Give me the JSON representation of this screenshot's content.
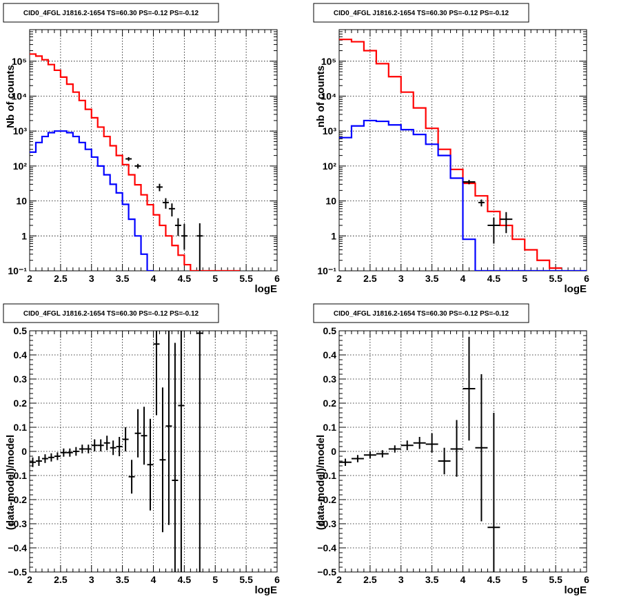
{
  "chart_data": [
    {
      "type": "histogram",
      "title": "CID0_4FGL J1816.2-1654 TS=60.30 PS=-0.12 PS=-0.12",
      "xlabel": "logE",
      "ylabel": "Nb of counts",
      "xlim": [
        2,
        6
      ],
      "ylim": [
        0.1,
        800000
      ],
      "yscale": "log",
      "grid": true,
      "x_ticks": [
        "2",
        "2.5",
        "3",
        "3.5",
        "4",
        "4.5",
        "5",
        "5.5",
        "6"
      ],
      "y_ticks": [
        {
          "v": 0.1,
          "label": "10⁻¹"
        },
        {
          "v": 1,
          "label": "1"
        },
        {
          "v": 10,
          "label": "10"
        },
        {
          "v": 100,
          "label": "10²"
        },
        {
          "v": 1000,
          "label": "10³"
        },
        {
          "v": 10000,
          "label": "10⁴"
        },
        {
          "v": 100000,
          "label": "10⁵"
        }
      ],
      "series": [
        {
          "color": "#ff0000",
          "kind": "step",
          "edges": [
            2.0,
            2.1,
            2.2,
            2.3,
            2.4,
            2.5,
            2.6,
            2.7,
            2.8,
            2.9,
            3.0,
            3.1,
            3.2,
            3.3,
            3.4,
            3.5,
            3.6,
            3.7,
            3.8,
            3.9,
            4.0,
            4.1,
            4.2,
            4.3,
            4.4,
            4.5,
            4.6,
            4.7,
            4.8,
            4.9,
            5.0,
            5.1,
            5.2,
            5.3,
            5.4
          ],
          "values": [
            160000,
            140000,
            110000,
            80000,
            55000,
            35000,
            22000,
            13000,
            7500,
            4200,
            2400,
            1300,
            700,
            380,
            200,
            110,
            56,
            29,
            15,
            7.8,
            4.0,
            2.0,
            1.0,
            0.53,
            0.28,
            0.15,
            0.1,
            0.1,
            0.1,
            0.1,
            0.1,
            0.1,
            0.1,
            0.1
          ]
        },
        {
          "color": "#0000ff",
          "kind": "step",
          "edges": [
            2.0,
            2.1,
            2.2,
            2.3,
            2.4,
            2.5,
            2.6,
            2.7,
            2.8,
            2.9,
            3.0,
            3.1,
            3.2,
            3.3,
            3.4,
            3.5,
            3.6,
            3.7,
            3.8,
            3.9,
            4.0
          ],
          "values": [
            250,
            470,
            700,
            900,
            1000,
            1000,
            900,
            700,
            470,
            300,
            180,
            100,
            56,
            30,
            17,
            8,
            3,
            1,
            0.3,
            0.1
          ]
        },
        {
          "color": "#000000",
          "kind": "points",
          "points": [
            {
              "x": 3.6,
              "y": 160,
              "xerr": 0.05,
              "ylo": 140,
              "yhi": 180
            },
            {
              "x": 3.75,
              "y": 100,
              "xerr": 0.05,
              "ylo": 85,
              "yhi": 115
            },
            {
              "x": 4.1,
              "y": 25,
              "xerr": 0.05,
              "ylo": 19,
              "yhi": 31
            },
            {
              "x": 4.2,
              "y": 9,
              "xerr": 0.05,
              "ylo": 6,
              "yhi": 12
            },
            {
              "x": 4.3,
              "y": 6,
              "xerr": 0.05,
              "ylo": 3.6,
              "yhi": 8.5
            },
            {
              "x": 4.4,
              "y": 2,
              "xerr": 0.05,
              "ylo": 1,
              "yhi": 3.2
            },
            {
              "x": 4.5,
              "y": 1,
              "xerr": 0.05,
              "ylo": 0.4,
              "yhi": 2.2
            },
            {
              "x": 4.75,
              "y": 1,
              "xerr": 0.05,
              "ylo": 0.1,
              "yhi": 2.3
            }
          ]
        }
      ]
    },
    {
      "type": "histogram",
      "title": "CID0_4FGL J1816.2-1654 TS=60.30 PS=-0.12 PS=-0.12",
      "xlabel": "logE",
      "ylabel": "nb of counts",
      "xlim": [
        2,
        6
      ],
      "ylim": [
        0.1,
        800000
      ],
      "yscale": "log",
      "grid": true,
      "x_ticks": [
        "2",
        "2.5",
        "3",
        "3.5",
        "4",
        "4.5",
        "5",
        "5.5",
        "6"
      ],
      "y_ticks": [
        {
          "v": 0.1,
          "label": "10⁻¹"
        },
        {
          "v": 1,
          "label": "1"
        },
        {
          "v": 10,
          "label": "10"
        },
        {
          "v": 100,
          "label": "10²"
        },
        {
          "v": 1000,
          "label": "10³"
        },
        {
          "v": 10000,
          "label": "10⁴"
        },
        {
          "v": 100000,
          "label": "10⁵"
        }
      ],
      "series": [
        {
          "color": "#ff0000",
          "kind": "step",
          "edges": [
            2.0,
            2.2,
            2.4,
            2.6,
            2.8,
            3.0,
            3.2,
            3.4,
            3.6,
            3.8,
            4.0,
            4.2,
            4.4,
            4.6,
            4.8,
            5.0,
            5.2,
            5.4,
            5.6
          ],
          "values": [
            420000,
            360000,
            200000,
            85000,
            36000,
            13000,
            4600,
            1200,
            300,
            80,
            32,
            14,
            5,
            2,
            0.8,
            0.4,
            0.2,
            0.12
          ]
        },
        {
          "color": "#0000ff",
          "kind": "step",
          "edges": [
            2.0,
            2.2,
            2.4,
            2.6,
            2.8,
            3.0,
            3.2,
            3.4,
            3.6,
            3.8,
            4.0,
            4.2,
            4.4,
            4.6,
            4.8,
            5.0,
            5.2,
            5.4,
            5.6,
            5.8,
            6.0
          ],
          "values": [
            650,
            1400,
            2000,
            1900,
            1500,
            1100,
            800,
            420,
            200,
            45,
            0.8,
            0.1,
            0.1,
            0.1,
            0.1,
            0.1,
            0.1,
            0.1,
            0.1,
            0.1
          ]
        },
        {
          "color": "#000000",
          "kind": "points",
          "points": [
            {
              "x": 4.1,
              "y": 35,
              "xerr": 0.1,
              "ylo": 30,
              "yhi": 40
            },
            {
              "x": 4.3,
              "y": 9,
              "xerr": 0.05,
              "ylo": 7,
              "yhi": 11
            },
            {
              "x": 4.5,
              "y": 2,
              "xerr": 0.1,
              "ylo": 0.6,
              "yhi": 3.3
            },
            {
              "x": 4.7,
              "y": 3,
              "xerr": 0.1,
              "ylo": 1.2,
              "yhi": 4.8
            }
          ]
        }
      ]
    },
    {
      "type": "scatter",
      "title": "CID0_4FGL J1816.2-1654 TS=60.30 PS=-0.12 PS=-0.12",
      "xlabel": "logE",
      "ylabel": "(data-model)/model",
      "xlim": [
        2,
        6
      ],
      "ylim": [
        -0.5,
        0.5
      ],
      "yscale": "linear",
      "grid": true,
      "x_ticks": [
        "2",
        "2.5",
        "3",
        "3.5",
        "4",
        "4.5",
        "5",
        "5.5",
        "6"
      ],
      "y_ticks": [
        {
          "v": -0.5,
          "label": "−0.5"
        },
        {
          "v": -0.4,
          "label": "−0.4"
        },
        {
          "v": -0.3,
          "label": "−0.3"
        },
        {
          "v": -0.2,
          "label": "−0.2"
        },
        {
          "v": -0.1,
          "label": "−0.1"
        },
        {
          "v": 0,
          "label": "0"
        },
        {
          "v": 0.1,
          "label": "0.1"
        },
        {
          "v": 0.2,
          "label": "0.2"
        },
        {
          "v": 0.3,
          "label": "0.3"
        },
        {
          "v": 0.4,
          "label": "0.4"
        },
        {
          "v": 0.5,
          "label": "0.5"
        }
      ],
      "series": [
        {
          "color": "#000000",
          "kind": "points",
          "points": [
            {
              "x": 2.05,
              "y": -0.045,
              "xerr": 0.05,
              "ylo": -0.065,
              "yhi": -0.025
            },
            {
              "x": 2.15,
              "y": -0.04,
              "xerr": 0.05,
              "ylo": -0.06,
              "yhi": -0.02
            },
            {
              "x": 2.25,
              "y": -0.03,
              "xerr": 0.05,
              "ylo": -0.048,
              "yhi": -0.012
            },
            {
              "x": 2.35,
              "y": -0.025,
              "xerr": 0.05,
              "ylo": -0.042,
              "yhi": -0.008
            },
            {
              "x": 2.45,
              "y": -0.02,
              "xerr": 0.05,
              "ylo": -0.036,
              "yhi": -0.004
            },
            {
              "x": 2.55,
              "y": -0.005,
              "xerr": 0.05,
              "ylo": -0.022,
              "yhi": 0.012
            },
            {
              "x": 2.65,
              "y": -0.005,
              "xerr": 0.05,
              "ylo": -0.022,
              "yhi": 0.012
            },
            {
              "x": 2.75,
              "y": 0.0,
              "xerr": 0.05,
              "ylo": -0.018,
              "yhi": 0.018
            },
            {
              "x": 2.85,
              "y": 0.01,
              "xerr": 0.05,
              "ylo": -0.008,
              "yhi": 0.028
            },
            {
              "x": 2.95,
              "y": 0.01,
              "xerr": 0.05,
              "ylo": -0.008,
              "yhi": 0.028
            },
            {
              "x": 3.05,
              "y": 0.025,
              "xerr": 0.05,
              "ylo": 0.0,
              "yhi": 0.05
            },
            {
              "x": 3.15,
              "y": 0.025,
              "xerr": 0.05,
              "ylo": 0.0,
              "yhi": 0.05
            },
            {
              "x": 3.25,
              "y": 0.035,
              "xerr": 0.05,
              "ylo": 0.005,
              "yhi": 0.065
            },
            {
              "x": 3.35,
              "y": 0.015,
              "xerr": 0.05,
              "ylo": -0.015,
              "yhi": 0.045
            },
            {
              "x": 3.45,
              "y": 0.02,
              "xerr": 0.05,
              "ylo": -0.02,
              "yhi": 0.06
            },
            {
              "x": 3.55,
              "y": 0.05,
              "xerr": 0.05,
              "ylo": 0.0,
              "yhi": 0.1
            },
            {
              "x": 3.65,
              "y": -0.105,
              "xerr": 0.05,
              "ylo": -0.175,
              "yhi": -0.035
            },
            {
              "x": 3.75,
              "y": 0.075,
              "xerr": 0.05,
              "ylo": -0.025,
              "yhi": 0.175
            },
            {
              "x": 3.85,
              "y": 0.065,
              "xerr": 0.05,
              "ylo": -0.055,
              "yhi": 0.185
            },
            {
              "x": 3.95,
              "y": -0.055,
              "xerr": 0.05,
              "ylo": -0.245,
              "yhi": 0.135
            },
            {
              "x": 4.05,
              "y": 0.445,
              "xerr": 0.05,
              "ylo": 0.15,
              "yhi": 0.5
            },
            {
              "x": 4.15,
              "y": -0.035,
              "xerr": 0.05,
              "ylo": -0.335,
              "yhi": 0.265
            },
            {
              "x": 4.25,
              "y": 0.105,
              "xerr": 0.05,
              "ylo": -0.305,
              "yhi": 0.5
            },
            {
              "x": 4.35,
              "y": -0.12,
              "xerr": 0.05,
              "ylo": -0.5,
              "yhi": 0.45
            },
            {
              "x": 4.45,
              "y": 0.19,
              "xerr": 0.05,
              "ylo": -0.5,
              "yhi": 0.5
            },
            {
              "x": 4.75,
              "y": 0.49,
              "xerr": 0.05,
              "ylo": -0.5,
              "yhi": 0.5
            }
          ]
        }
      ]
    },
    {
      "type": "scatter",
      "title": "CID0_4FGL J1816.2-1654 TS=60.30 PS=-0.12 PS=-0.12",
      "xlabel": "logE",
      "ylabel": "(data-model)/model",
      "xlim": [
        2,
        6
      ],
      "ylim": [
        -0.5,
        0.5
      ],
      "yscale": "linear",
      "grid": true,
      "x_ticks": [
        "2",
        "2.5",
        "3",
        "3.5",
        "4",
        "4.5",
        "5",
        "5.5",
        "6"
      ],
      "y_ticks": [
        {
          "v": -0.5,
          "label": "−0.5"
        },
        {
          "v": -0.4,
          "label": "−0.4"
        },
        {
          "v": -0.3,
          "label": "−0.3"
        },
        {
          "v": -0.2,
          "label": "−0.2"
        },
        {
          "v": -0.1,
          "label": "−0.1"
        },
        {
          "v": 0,
          "label": "0"
        },
        {
          "v": 0.1,
          "label": "0.1"
        },
        {
          "v": 0.2,
          "label": "0.2"
        },
        {
          "v": 0.3,
          "label": "0.3"
        },
        {
          "v": 0.4,
          "label": "0.4"
        },
        {
          "v": 0.5,
          "label": "0.5"
        }
      ],
      "series": [
        {
          "color": "#000000",
          "kind": "points",
          "points": [
            {
              "x": 2.1,
              "y": -0.045,
              "xerr": 0.1,
              "ylo": -0.06,
              "yhi": -0.03
            },
            {
              "x": 2.3,
              "y": -0.03,
              "xerr": 0.1,
              "ylo": -0.045,
              "yhi": -0.015
            },
            {
              "x": 2.5,
              "y": -0.015,
              "xerr": 0.1,
              "ylo": -0.03,
              "yhi": 0.0
            },
            {
              "x": 2.7,
              "y": -0.01,
              "xerr": 0.1,
              "ylo": -0.025,
              "yhi": 0.005
            },
            {
              "x": 2.9,
              "y": 0.01,
              "xerr": 0.1,
              "ylo": -0.005,
              "yhi": 0.025
            },
            {
              "x": 3.1,
              "y": 0.025,
              "xerr": 0.1,
              "ylo": 0.005,
              "yhi": 0.045
            },
            {
              "x": 3.3,
              "y": 0.035,
              "xerr": 0.1,
              "ylo": 0.01,
              "yhi": 0.06
            },
            {
              "x": 3.5,
              "y": 0.03,
              "xerr": 0.1,
              "ylo": -0.005,
              "yhi": 0.075
            },
            {
              "x": 3.7,
              "y": -0.04,
              "xerr": 0.1,
              "ylo": -0.095,
              "yhi": 0.015
            },
            {
              "x": 3.9,
              "y": 0.01,
              "xerr": 0.1,
              "ylo": -0.105,
              "yhi": 0.13
            },
            {
              "x": 4.1,
              "y": 0.26,
              "xerr": 0.1,
              "ylo": 0.045,
              "yhi": 0.475
            },
            {
              "x": 4.3,
              "y": 0.015,
              "xerr": 0.1,
              "ylo": -0.29,
              "yhi": 0.32
            },
            {
              "x": 4.5,
              "y": -0.315,
              "xerr": 0.1,
              "ylo": -0.5,
              "yhi": 0.16
            }
          ]
        }
      ]
    }
  ]
}
